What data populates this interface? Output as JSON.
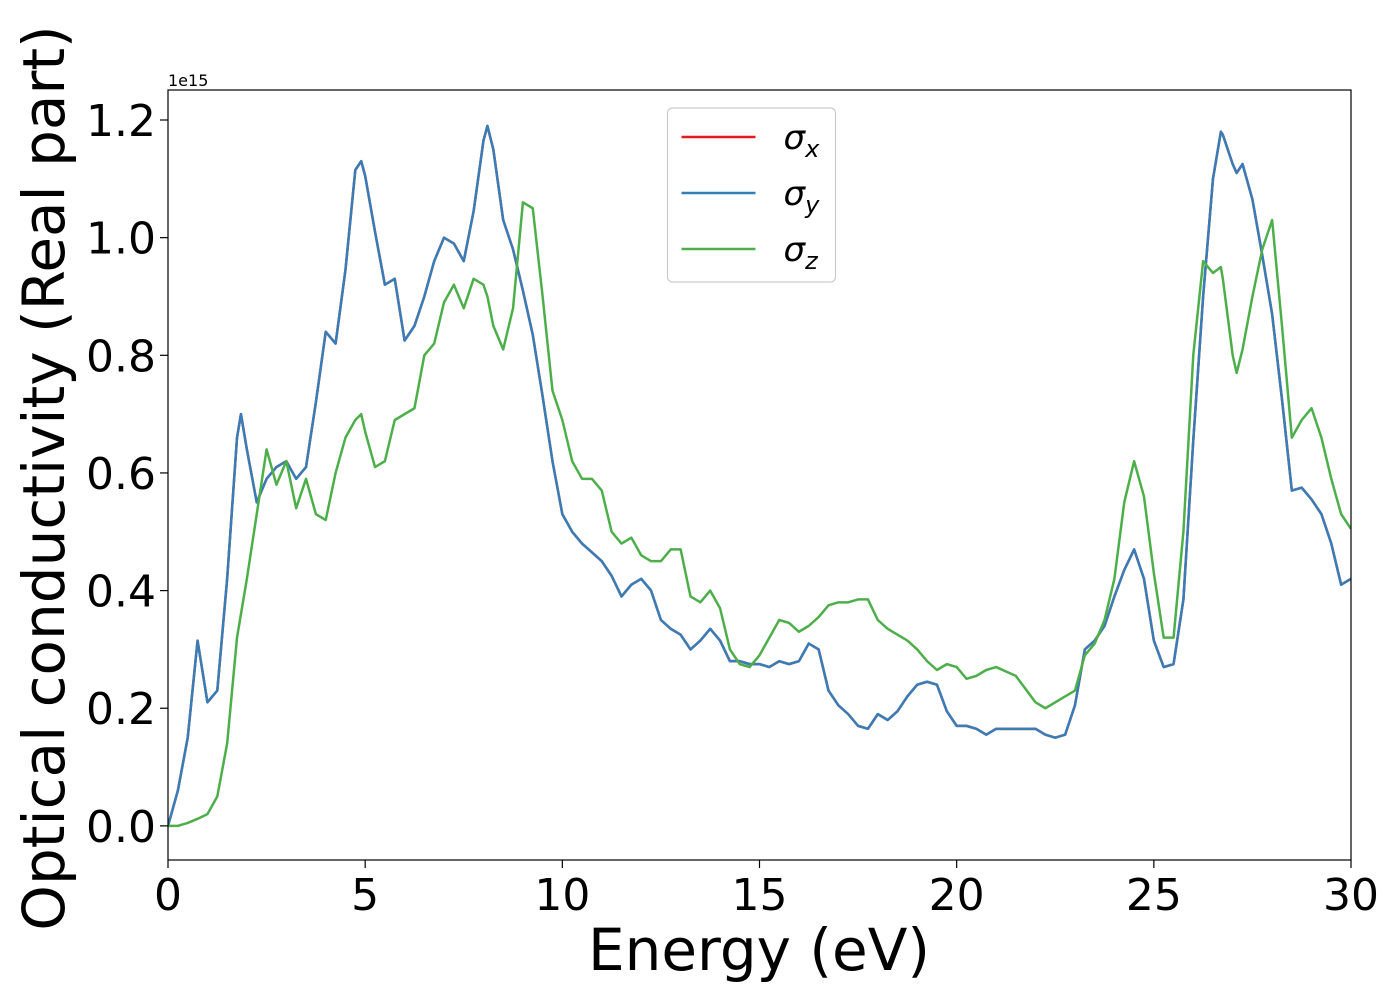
{
  "chart_data": {
    "type": "line",
    "xlabel": "Energy (eV)",
    "ylabel": "Optical conductivity (Real part)",
    "offset_label": "1e15",
    "xlim": [
      0,
      30
    ],
    "xticks": [
      0,
      5,
      10,
      15,
      20,
      25,
      30
    ],
    "ylim": [
      -0.058,
      1.251
    ],
    "yticks": [
      {
        "value": 0,
        "label": "0.0"
      },
      0.2,
      0.4,
      0.6,
      0.8,
      {
        "value": 1,
        "label": "1.0"
      },
      1.2
    ],
    "legend": "upper center",
    "x": [
      0,
      0.25,
      0.5,
      0.75,
      1,
      1.25,
      1.5,
      1.75,
      1.85,
      2,
      2.25,
      2.5,
      2.75,
      3,
      3.25,
      3.5,
      3.75,
      4,
      4.25,
      4.5,
      4.75,
      4.9,
      5,
      5.25,
      5.5,
      5.75,
      6,
      6.25,
      6.5,
      6.75,
      7,
      7.25,
      7.5,
      7.75,
      8,
      8.1,
      8.25,
      8.5,
      8.75,
      9,
      9.25,
      9.5,
      9.75,
      10,
      10.25,
      10.5,
      10.75,
      11,
      11.25,
      11.5,
      11.75,
      12,
      12.25,
      12.5,
      12.75,
      13,
      13.25,
      13.5,
      13.75,
      14,
      14.25,
      14.5,
      14.75,
      15,
      15.25,
      15.5,
      15.75,
      16,
      16.25,
      16.5,
      16.75,
      17,
      17.25,
      17.5,
      17.75,
      18,
      18.25,
      18.5,
      18.75,
      19,
      19.25,
      19.5,
      19.75,
      20,
      20.25,
      20.5,
      20.75,
      21,
      21.5,
      22,
      22.25,
      22.5,
      22.75,
      23,
      23.25,
      23.5,
      23.75,
      24,
      24.25,
      24.5,
      24.75,
      25,
      25.25,
      25.5,
      25.75,
      26,
      26.25,
      26.5,
      26.7,
      26.75,
      27,
      27.1,
      27.25,
      27.5,
      27.75,
      28,
      28.25,
      28.5,
      28.75,
      29,
      29.25,
      29.5,
      29.75,
      30
    ],
    "series": [
      {
        "name": "σx",
        "color": "#e41a1c",
        "values": [
          0,
          0.06,
          0.15,
          0.315,
          0.21,
          0.23,
          0.42,
          0.66,
          0.7,
          0.64,
          0.55,
          0.59,
          0.61,
          0.62,
          0.59,
          0.61,
          0.72,
          0.84,
          0.82,
          0.945,
          1.115,
          1.13,
          1.105,
          1.01,
          0.92,
          0.93,
          0.825,
          0.85,
          0.9,
          0.96,
          1.0,
          0.99,
          0.96,
          1.045,
          1.165,
          1.19,
          1.15,
          1.03,
          0.98,
          0.91,
          0.835,
          0.73,
          0.62,
          0.53,
          0.5,
          0.48,
          0.465,
          0.45,
          0.425,
          0.39,
          0.41,
          0.42,
          0.4,
          0.35,
          0.335,
          0.325,
          0.3,
          0.315,
          0.335,
          0.315,
          0.28,
          0.28,
          0.275,
          0.275,
          0.27,
          0.28,
          0.275,
          0.28,
          0.31,
          0.3,
          0.23,
          0.205,
          0.19,
          0.17,
          0.165,
          0.19,
          0.18,
          0.195,
          0.22,
          0.24,
          0.245,
          0.24,
          0.195,
          0.17,
          0.17,
          0.165,
          0.155,
          0.165,
          0.165,
          0.165,
          0.155,
          0.15,
          0.155,
          0.205,
          0.3,
          0.315,
          0.34,
          0.39,
          0.435,
          0.47,
          0.42,
          0.315,
          0.27,
          0.275,
          0.385,
          0.655,
          0.9,
          1.1,
          1.18,
          1.175,
          1.125,
          1.11,
          1.125,
          1.065,
          0.97,
          0.87,
          0.725,
          0.57,
          0.575,
          0.555,
          0.53,
          0.48,
          0.41,
          0.42
        ]
      },
      {
        "name": "σy",
        "color": "#377eb8",
        "values": [
          0,
          0.06,
          0.15,
          0.315,
          0.21,
          0.23,
          0.42,
          0.66,
          0.7,
          0.64,
          0.55,
          0.59,
          0.61,
          0.62,
          0.59,
          0.61,
          0.72,
          0.84,
          0.82,
          0.945,
          1.115,
          1.13,
          1.105,
          1.01,
          0.92,
          0.93,
          0.825,
          0.85,
          0.9,
          0.96,
          1.0,
          0.99,
          0.96,
          1.045,
          1.165,
          1.19,
          1.15,
          1.03,
          0.98,
          0.91,
          0.835,
          0.73,
          0.62,
          0.53,
          0.5,
          0.48,
          0.465,
          0.45,
          0.425,
          0.39,
          0.41,
          0.42,
          0.4,
          0.35,
          0.335,
          0.325,
          0.3,
          0.315,
          0.335,
          0.315,
          0.28,
          0.28,
          0.275,
          0.275,
          0.27,
          0.28,
          0.275,
          0.28,
          0.31,
          0.3,
          0.23,
          0.205,
          0.19,
          0.17,
          0.165,
          0.19,
          0.18,
          0.195,
          0.22,
          0.24,
          0.245,
          0.24,
          0.195,
          0.17,
          0.17,
          0.165,
          0.155,
          0.165,
          0.165,
          0.165,
          0.155,
          0.15,
          0.155,
          0.205,
          0.3,
          0.315,
          0.34,
          0.39,
          0.435,
          0.47,
          0.42,
          0.315,
          0.27,
          0.275,
          0.385,
          0.655,
          0.9,
          1.1,
          1.18,
          1.175,
          1.125,
          1.11,
          1.125,
          1.065,
          0.97,
          0.87,
          0.725,
          0.57,
          0.575,
          0.555,
          0.53,
          0.48,
          0.41,
          0.42
        ]
      },
      {
        "name": "σz",
        "color": "#4daf4a",
        "values": [
          0,
          0.0,
          0.005,
          0.012,
          0.02,
          0.05,
          0.14,
          0.32,
          0.36,
          0.42,
          0.53,
          0.64,
          0.58,
          0.62,
          0.54,
          0.59,
          0.53,
          0.52,
          0.6,
          0.66,
          0.69,
          0.7,
          0.67,
          0.61,
          0.62,
          0.69,
          0.7,
          0.71,
          0.8,
          0.82,
          0.89,
          0.92,
          0.88,
          0.93,
          0.92,
          0.9,
          0.85,
          0.81,
          0.88,
          1.06,
          1.05,
          0.9,
          0.74,
          0.69,
          0.62,
          0.59,
          0.59,
          0.57,
          0.5,
          0.48,
          0.49,
          0.46,
          0.45,
          0.45,
          0.47,
          0.47,
          0.39,
          0.38,
          0.4,
          0.37,
          0.3,
          0.275,
          0.27,
          0.29,
          0.32,
          0.35,
          0.345,
          0.33,
          0.34,
          0.355,
          0.375,
          0.38,
          0.38,
          0.385,
          0.385,
          0.35,
          0.335,
          0.325,
          0.315,
          0.3,
          0.28,
          0.265,
          0.275,
          0.27,
          0.25,
          0.255,
          0.265,
          0.27,
          0.255,
          0.21,
          0.2,
          0.21,
          0.22,
          0.23,
          0.29,
          0.31,
          0.35,
          0.42,
          0.55,
          0.62,
          0.56,
          0.43,
          0.32,
          0.32,
          0.5,
          0.8,
          0.96,
          0.94,
          0.95,
          0.93,
          0.8,
          0.77,
          0.81,
          0.9,
          0.98,
          1.03,
          0.85,
          0.66,
          0.69,
          0.71,
          0.66,
          0.59,
          0.53,
          0.505
        ]
      }
    ]
  }
}
